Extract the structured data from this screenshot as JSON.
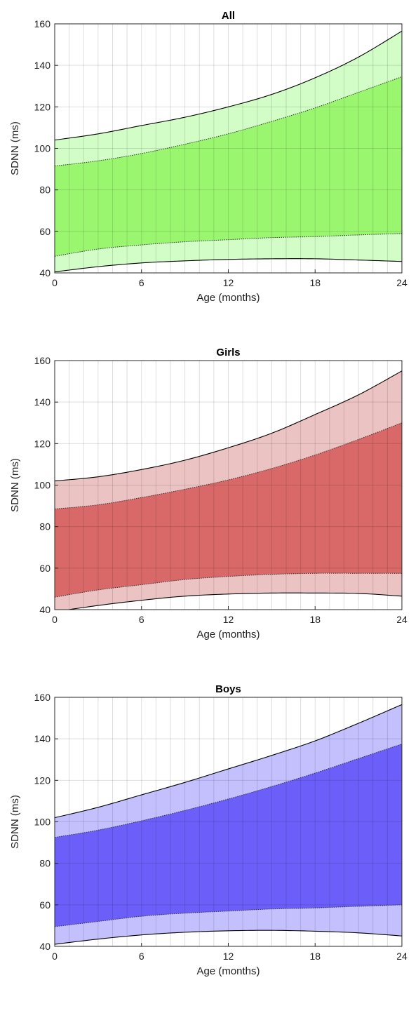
{
  "chart_data": [
    {
      "type": "area",
      "title": "All",
      "xlabel": "Age (months)",
      "ylabel": "SDNN (ms)",
      "xlim": [
        0,
        24
      ],
      "ylim": [
        40,
        160
      ],
      "xticks": [
        0,
        6,
        12,
        18,
        24
      ],
      "yticks": [
        40,
        60,
        80,
        100,
        120,
        140,
        160
      ],
      "grid": true,
      "colors": {
        "outer": "#d2fdc7",
        "inner": "#9af66e"
      },
      "x": [
        0,
        3,
        6,
        9,
        12,
        15,
        18,
        21,
        24
      ],
      "bands": {
        "outer_upper": [
          104,
          107,
          111,
          115,
          120,
          126,
          134,
          144,
          156.5
        ],
        "inner_upper": [
          91.5,
          94,
          97.5,
          102,
          107,
          113,
          119.5,
          127,
          134.5
        ],
        "inner_lower": [
          48,
          51.5,
          53.5,
          55,
          56,
          57,
          57.5,
          58.3,
          59
        ],
        "outer_lower": [
          40.5,
          43,
          44.8,
          45.8,
          46.5,
          46.8,
          46.8,
          46.2,
          45.5
        ]
      }
    },
    {
      "type": "area",
      "title": "Girls",
      "xlabel": "Age (months)",
      "ylabel": "SDNN (ms)",
      "xlim": [
        0,
        24
      ],
      "ylim": [
        40,
        160
      ],
      "xticks": [
        0,
        6,
        12,
        18,
        24
      ],
      "yticks": [
        40,
        60,
        80,
        100,
        120,
        140,
        160
      ],
      "grid": true,
      "colors": {
        "outer": "#ebc3c3",
        "inner": "#d96868"
      },
      "x": [
        0,
        3,
        6,
        9,
        12,
        15,
        18,
        21,
        24
      ],
      "bands": {
        "outer_upper": [
          102,
          104,
          107.5,
          112,
          118,
          125,
          134,
          143.5,
          155
        ],
        "inner_upper": [
          88.5,
          90.5,
          94,
          98,
          102.5,
          108,
          114.5,
          122,
          130
        ],
        "inner_lower": [
          46,
          49.5,
          52,
          54.5,
          56,
          57,
          57.5,
          57.5,
          57.5
        ],
        "outer_lower": [
          39,
          42,
          44.5,
          46.5,
          47.5,
          48,
          48,
          47.8,
          46.5
        ]
      }
    },
    {
      "type": "area",
      "title": "Boys",
      "xlabel": "Age (months)",
      "ylabel": "SDNN (ms)",
      "xlim": [
        0,
        24
      ],
      "ylim": [
        40,
        160
      ],
      "xticks": [
        0,
        6,
        12,
        18,
        24
      ],
      "yticks": [
        40,
        60,
        80,
        100,
        120,
        140,
        160
      ],
      "grid": true,
      "colors": {
        "outer": "#c3c0fd",
        "inner": "#6c5ef8"
      },
      "x": [
        0,
        3,
        6,
        9,
        12,
        15,
        18,
        21,
        24
      ],
      "bands": {
        "outer_upper": [
          102,
          107,
          113,
          119,
          125.5,
          132,
          139,
          147.5,
          156.5
        ],
        "inner_upper": [
          92.5,
          96,
          100.5,
          105.5,
          111,
          117,
          123.5,
          130.5,
          137.5
        ],
        "inner_lower": [
          49.5,
          52,
          54.5,
          56,
          57,
          58,
          58.5,
          59.3,
          60
        ],
        "outer_lower": [
          41,
          43.5,
          45.5,
          46.8,
          47.5,
          47.7,
          47.3,
          46.5,
          45
        ]
      }
    }
  ]
}
